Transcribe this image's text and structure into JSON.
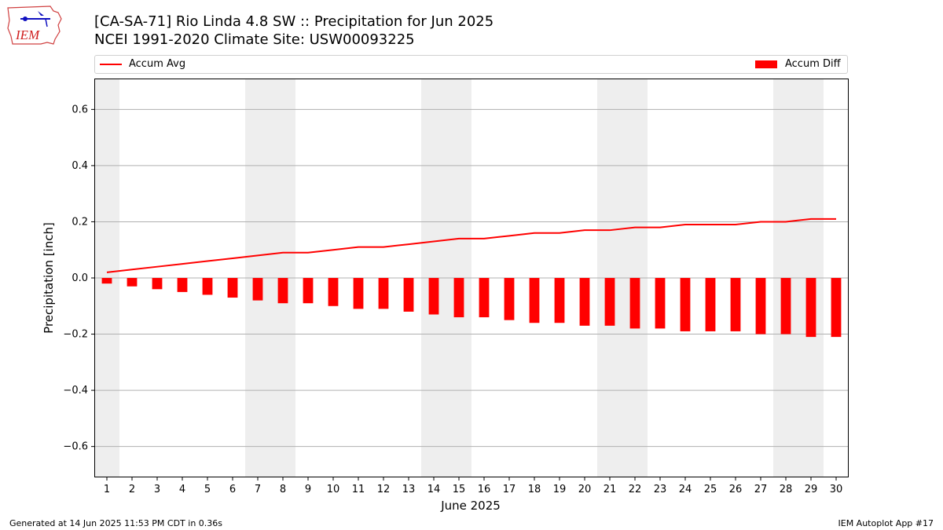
{
  "header": {
    "title_line1": "[CA-SA-71] Rio Linda 4.8 SW :: Precipitation for Jun 2025",
    "title_line2": "NCEI 1991-2020 Climate Site: USW00093225",
    "logo_text": "IEM",
    "logo_icon": "iowa-map-logo-icon"
  },
  "legend": {
    "line_label": "Accum Avg",
    "bar_label": "Accum Diff",
    "placement": "top (above plot)"
  },
  "footer": {
    "left": "Generated at 14 Jun 2025 11:53 PM CDT in 0.36s",
    "right": "IEM Autoplot App #17"
  },
  "colors": {
    "series": "#ff0000",
    "weekend_shade": "#eeeeee",
    "grid": "#b0b0b0"
  },
  "chart_data": {
    "type": "bar",
    "title": "[CA-SA-71] Rio Linda 4.8 SW :: Precipitation for Jun 2025",
    "subtitle": "NCEI 1991-2020 Climate Site: USW00093225",
    "xlabel": "June 2025",
    "ylabel": "Precipitation [inch]",
    "ylim": [
      -0.71,
      0.71
    ],
    "yticks": [
      -0.6,
      -0.4,
      -0.2,
      0.0,
      0.2,
      0.4,
      0.6
    ],
    "ytick_labels": [
      "−0.6",
      "−0.4",
      "−0.2",
      "0.0",
      "0.2",
      "0.4",
      "0.6"
    ],
    "grid": "horizontal",
    "categories": [
      "1",
      "2",
      "3",
      "4",
      "5",
      "6",
      "7",
      "8",
      "9",
      "10",
      "11",
      "12",
      "13",
      "14",
      "15",
      "16",
      "17",
      "18",
      "19",
      "20",
      "21",
      "22",
      "23",
      "24",
      "25",
      "26",
      "27",
      "28",
      "29",
      "30"
    ],
    "shaded_days": [
      1,
      7,
      8,
      14,
      15,
      21,
      22,
      28,
      29
    ],
    "series": [
      {
        "name": "Accum Avg",
        "kind": "line",
        "values": [
          0.02,
          0.03,
          0.04,
          0.05,
          0.06,
          0.07,
          0.08,
          0.09,
          0.09,
          0.1,
          0.11,
          0.11,
          0.12,
          0.13,
          0.14,
          0.14,
          0.15,
          0.16,
          0.16,
          0.17,
          0.17,
          0.18,
          0.18,
          0.19,
          0.19,
          0.19,
          0.2,
          0.2,
          0.21,
          0.21
        ]
      },
      {
        "name": "Accum Diff",
        "kind": "bar",
        "values": [
          -0.02,
          -0.03,
          -0.04,
          -0.05,
          -0.06,
          -0.07,
          -0.08,
          -0.09,
          -0.09,
          -0.1,
          -0.11,
          -0.11,
          -0.12,
          -0.13,
          -0.14,
          -0.14,
          -0.15,
          -0.16,
          -0.16,
          -0.17,
          -0.17,
          -0.18,
          -0.18,
          -0.19,
          -0.19,
          -0.19,
          -0.2,
          -0.2,
          -0.21,
          -0.21
        ]
      }
    ]
  }
}
